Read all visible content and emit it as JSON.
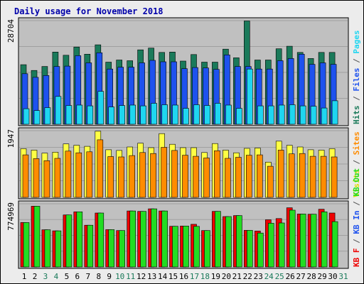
{
  "chart_data": {
    "type": "bar",
    "title": "Daily usage for November 2018",
    "x": [
      "1",
      "2",
      "3",
      "4",
      "5",
      "6",
      "7",
      "8",
      "9",
      "10",
      "11",
      "12",
      "13",
      "14",
      "15",
      "16",
      "17",
      "18",
      "19",
      "20",
      "21",
      "22",
      "23",
      "24",
      "25",
      "26",
      "27",
      "28",
      "29",
      "30",
      "31"
    ],
    "weekend_days": [
      "3",
      "4",
      "10",
      "11",
      "17",
      "18",
      "24",
      "25",
      "31"
    ],
    "panels": [
      {
        "id": "hits-files-pages",
        "ytick": "28704",
        "ymax": 28704,
        "series": [
          {
            "name": "Hits",
            "color": "#1a7a5a",
            "values": [
              16500,
              14900,
              16000,
              20000,
              19100,
              21400,
              19400,
              22000,
              17200,
              17800,
              17600,
              20600,
              21100,
              19900,
              20000,
              17500,
              19300,
              17200,
              17200,
              20800,
              18400,
              28600,
              17800,
              17800,
              20900,
              21600,
              19900,
              18200,
              19900,
              19900,
              null
            ]
          },
          {
            "name": "Files",
            "color": "#1e52ee",
            "values": [
              14000,
              13000,
              13500,
              16000,
              16100,
              19000,
              17000,
              19800,
              15300,
              15800,
              15800,
              17000,
              17700,
              17300,
              17300,
              15400,
              15700,
              15600,
              15200,
              19200,
              16000,
              16000,
              15300,
              15300,
              17600,
              18200,
              19400,
              16600,
              17000,
              16600,
              null
            ]
          },
          {
            "name": "Pages",
            "color": "#1fd6f0",
            "values": [
              4300,
              3800,
              4600,
              7700,
              5200,
              5300,
              5100,
              9100,
              4800,
              5200,
              5300,
              5100,
              5800,
              5400,
              5300,
              4400,
              5400,
              5200,
              5800,
              5300,
              4400,
              15300,
              5100,
              5100,
              5300,
              5400,
              5100,
              5000,
              4500,
              6500,
              null
            ]
          }
        ]
      },
      {
        "id": "visits-sites",
        "ytick": "1947",
        "ymax": 1947,
        "series": [
          {
            "name": "Visits",
            "color": "#ffff44",
            "values": [
              1420,
              1380,
              1290,
              1320,
              1560,
              1520,
              1490,
              1930,
              1390,
              1370,
              1470,
              1580,
              1450,
              1860,
              1550,
              1450,
              1450,
              1310,
              1570,
              1380,
              1300,
              1430,
              1440,
              1030,
              1640,
              1520,
              1470,
              1390,
              1380,
              1420,
              null
            ]
          },
          {
            "name": "Sites",
            "color": "#ff8c00",
            "values": [
              1240,
              1130,
              1070,
              1140,
              1350,
              1300,
              1330,
              1680,
              1190,
              1180,
              1220,
              1310,
              1280,
              1460,
              1370,
              1230,
              1200,
              1150,
              1360,
              1140,
              1170,
              1230,
              1240,
              910,
              1380,
              1270,
              1280,
              1200,
              1200,
              1180,
              null
            ]
          }
        ]
      },
      {
        "id": "kb-f-in-out",
        "ytick": "774969",
        "ymax": 774969,
        "series": [
          {
            "name": "KB F",
            "color": "#ee0000",
            "values": [
              545000,
              745000,
              456000,
              443000,
              638000,
              677000,
              512000,
              662000,
              458000,
              447000,
              687000,
              682000,
              713000,
              687000,
              499000,
              502000,
              523000,
              447000,
              682000,
              618000,
              630000,
              449000,
              441000,
              579000,
              594000,
              726000,
              650000,
              647000,
              708000,
              662000,
              null
            ]
          },
          {
            "name": "KB In",
            "color": "#1e52ee",
            "values": [
              0,
              0,
              0,
              0,
              0,
              0,
              0,
              0,
              0,
              0,
              0,
              0,
              0,
              0,
              0,
              0,
              0,
              0,
              0,
              0,
              0,
              0,
              0,
              0,
              0,
              0,
              0,
              0,
              0,
              0,
              null
            ]
          },
          {
            "name": "KB Out",
            "color": "#22dd22",
            "values": [
              545000,
              745000,
              456000,
              443000,
              638000,
              677000,
              512000,
              662000,
              458000,
              447000,
              687000,
              682000,
              713000,
              687000,
              499000,
              502000,
              498000,
              447000,
              682000,
              618000,
              630000,
              449000,
              416000,
              536000,
              540000,
              697000,
              650000,
              647000,
              676000,
              556000,
              null
            ]
          }
        ]
      }
    ],
    "right_labels": [
      [
        {
          "text": "Hits",
          "color": "#1a7a5a"
        },
        {
          "text": " / ",
          "color": "#555555"
        },
        {
          "text": "Files",
          "color": "#1e52ee"
        },
        {
          "text": " / ",
          "color": "#555555"
        },
        {
          "text": "Pages",
          "color": "#1fd6f0"
        }
      ],
      [
        {
          "text": "Visits",
          "color": "#dddd00"
        },
        {
          "text": " / ",
          "color": "#555555"
        },
        {
          "text": "Sites",
          "color": "#ff8c00"
        }
      ],
      [
        {
          "text": "KB F",
          "color": "#ee0000"
        },
        {
          "text": " / ",
          "color": "#555555"
        },
        {
          "text": "KB In",
          "color": "#1e52ee"
        },
        {
          "text": " / ",
          "color": "#555555"
        },
        {
          "text": "KB Out",
          "color": "#22dd22"
        }
      ]
    ],
    "colors": {
      "page_bg": "#ececec",
      "plot_bg": "#c0c0c0",
      "title": "#0000aa",
      "weekday_label": "#000000",
      "weekend_label": "#1a7a5a",
      "grid": "#a0a0a0"
    },
    "grid": true
  }
}
